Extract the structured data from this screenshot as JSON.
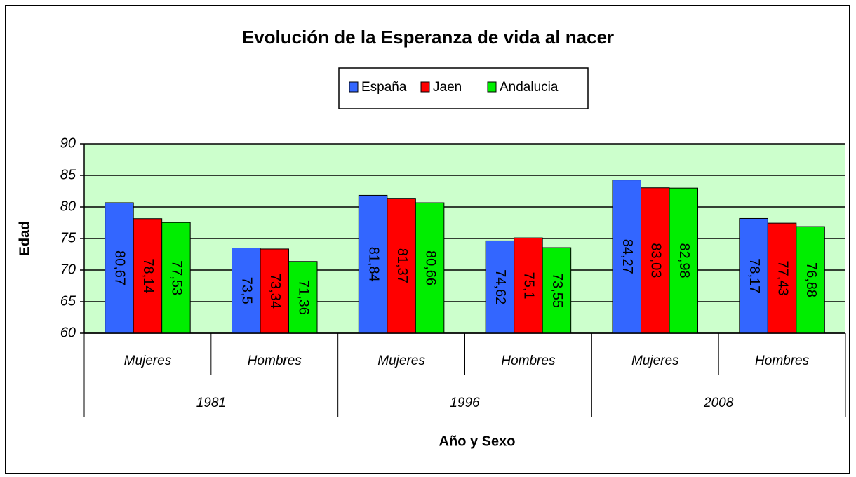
{
  "chart_data": {
    "type": "bar",
    "title": "Evolución de la Esperanza de vida al nacer",
    "x_label": "Año y Sexo",
    "y_label": "Edad",
    "categories": [
      "Mujeres",
      "Hombres",
      "Mujeres",
      "Hombres",
      "Mujeres",
      "Hombres"
    ],
    "groups": [
      "1981",
      "1996",
      "2008"
    ],
    "series": [
      {
        "name": "España",
        "color": "#3366ff",
        "values": [
          80.67,
          73.5,
          81.84,
          74.62,
          84.27,
          78.17
        ],
        "value_labels": [
          "80,67",
          "73,5",
          "81,84",
          "74,62",
          "84,27",
          "78,17"
        ]
      },
      {
        "name": "Jaen",
        "color": "#ff0000",
        "values": [
          78.14,
          73.34,
          81.37,
          75.1,
          83.03,
          77.43
        ],
        "value_labels": [
          "78,14",
          "73,34",
          "81,37",
          "75,1",
          "83,03",
          "77,43"
        ]
      },
      {
        "name": "Andalucia",
        "color": "#00ee00",
        "values": [
          77.53,
          71.36,
          80.66,
          73.55,
          82.98,
          76.88
        ],
        "value_labels": [
          "77,53",
          "71,36",
          "80,66",
          "73,55",
          "82,98",
          "76,88"
        ]
      }
    ],
    "ylim": [
      60,
      90
    ],
    "yticks": [
      60,
      65,
      70,
      75,
      80,
      85,
      90
    ],
    "grid": true,
    "plot_background": "#ccffcc",
    "legend": "top"
  }
}
